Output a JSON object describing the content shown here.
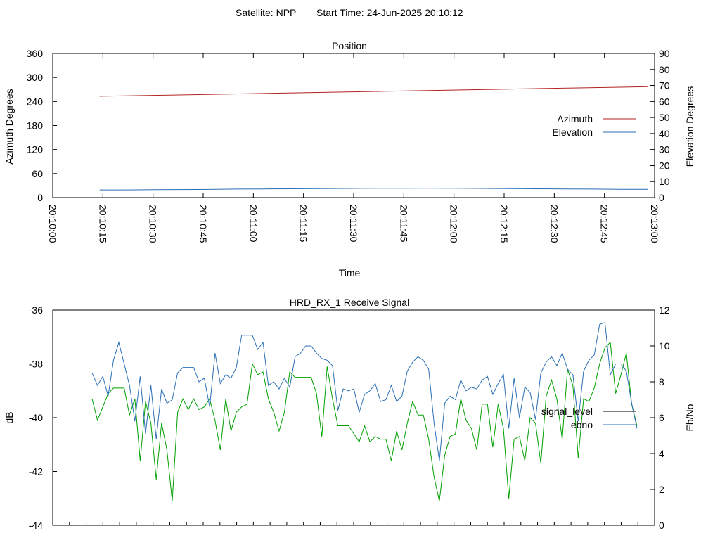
{
  "header": {
    "satellite": "Satellite: NPP",
    "start_time": "Start Time: 24-Jun-2025 20:10:12"
  },
  "chart_data": [
    {
      "type": "line",
      "title": "Position",
      "xlabel": "Time",
      "ylabel": "Azimuth Degrees",
      "y2label": "Elevation Degrees",
      "ylim": [
        0,
        360
      ],
      "y2lim": [
        0,
        90
      ],
      "yticks": [
        0,
        60,
        120,
        180,
        240,
        300,
        360
      ],
      "y2ticks": [
        0,
        10,
        20,
        30,
        40,
        50,
        60,
        70,
        80,
        90
      ],
      "xlim_seconds_after_start": [
        -12,
        168
      ],
      "xtick_labels": [
        "20:10:00",
        "20:10:15",
        "20:10:30",
        "20:10:45",
        "20:11:00",
        "20:11:15",
        "20:11:30",
        "20:11:45",
        "20:12:00",
        "20:12:15",
        "20:12:30",
        "20:12:45",
        "20:13:00"
      ],
      "legend_position": "right",
      "colors": {
        "azimuth": "#b22222",
        "elevation": "#2a6fb5"
      },
      "series": [
        {
          "name": "Azimuth",
          "axis": "left",
          "x_range": [
            "20:10:14",
            "20:12:58"
          ],
          "start": 253,
          "end": 277
        },
        {
          "name": "Elevation",
          "axis": "right",
          "x_range": [
            "20:10:14",
            "20:12:58"
          ],
          "values": [
            4.8,
            4.8,
            4.9,
            5.0,
            5.1,
            5.3,
            5.4,
            5.5,
            5.6,
            5.7,
            5.8,
            5.8,
            5.9,
            5.8,
            5.7,
            5.6,
            5.5,
            5.4,
            5.3,
            5.2,
            5.2
          ]
        }
      ]
    },
    {
      "type": "line",
      "title": "HRD_RX_1 Receive Signal",
      "ylabel": "dB",
      "y2label": "Eb/No",
      "ylim": [
        -44,
        -36
      ],
      "y2lim": [
        0,
        12
      ],
      "yticks": [
        -44,
        -42,
        -40,
        -38,
        -36
      ],
      "y2ticks": [
        0,
        2,
        4,
        6,
        8,
        10,
        12
      ],
      "legend_position": "right",
      "colors": {
        "signal_level": "#00a000",
        "ebno": "#2a6fb5",
        "legend_signal": "#000000"
      },
      "series": [
        {
          "name": "signal_level",
          "axis": "left",
          "values": [
            -39.3,
            -40.1,
            -39.6,
            -39.1,
            -38.9,
            -38.9,
            -38.9,
            -39.9,
            -39.3,
            -41.6,
            -39.4,
            -40.2,
            -42.3,
            -40.2,
            -41.2,
            -43.1,
            -39.8,
            -39.3,
            -39.7,
            -39.3,
            -39.7,
            -39.6,
            -39.3,
            -40.1,
            -41.2,
            -39.3,
            -40.5,
            -39.8,
            -39.6,
            -39.5,
            -38.0,
            -38.4,
            -38.3,
            -39.3,
            -39.8,
            -40.5,
            -39.8,
            -38.3,
            -38.5,
            -38.5,
            -38.5,
            -38.5,
            -39.1,
            -40.7,
            -38.1,
            -39.3,
            -40.3,
            -40.3,
            -40.3,
            -40.6,
            -40.9,
            -40.3,
            -40.9,
            -40.7,
            -40.8,
            -40.8,
            -41.6,
            -40.5,
            -41.2,
            -40.2,
            -39.4,
            -39.9,
            -39.9,
            -40.8,
            -42.2,
            -43.1,
            -41.4,
            -40.7,
            -40.6,
            -39.3,
            -40.1,
            -40.4,
            -41.2,
            -39.5,
            -39.5,
            -41.1,
            -39.5,
            -40.4,
            -43.0,
            -40.8,
            -40.7,
            -41.6,
            -40.0,
            -40.2,
            -41.7,
            -39.2,
            -38.6,
            -39.3,
            -40.8,
            -38.2,
            -38.8,
            -41.5,
            -39.3,
            -39.4,
            -38.9,
            -38.0,
            -37.4,
            -37.2,
            -39.1,
            -38.4,
            -37.6,
            -39.5,
            -40.3
          ]
        },
        {
          "name": "ebno",
          "axis": "right",
          "values": [
            8.5,
            7.8,
            8.3,
            7.2,
            9.2,
            10.2,
            9.0,
            7.8,
            5.8,
            8.3,
            5.1,
            7.8,
            4.8,
            7.6,
            6.8,
            7.0,
            8.5,
            8.8,
            8.8,
            8.8,
            8.0,
            8.2,
            6.6,
            9.6,
            7.9,
            8.4,
            8.2,
            8.8,
            10.6,
            10.6,
            10.6,
            9.8,
            10.2,
            7.8,
            8.0,
            7.6,
            8.2,
            7.7,
            9.4,
            9.6,
            10.0,
            10.0,
            9.6,
            9.3,
            9.2,
            8.9,
            6.4,
            7.6,
            7.5,
            7.6,
            6.3,
            7.3,
            7.5,
            7.9,
            6.9,
            7.0,
            7.8,
            6.9,
            7.2,
            8.6,
            9.1,
            9.4,
            9.2,
            8.7,
            5.7,
            3.6,
            6.8,
            7.2,
            7.0,
            8.1,
            7.5,
            7.7,
            7.6,
            8.1,
            8.3,
            7.3,
            7.9,
            8.4,
            5.4,
            8.2,
            6.0,
            7.7,
            7.4,
            5.9,
            8.5,
            9.1,
            9.4,
            8.9,
            9.6,
            8.7,
            8.4,
            5.8,
            8.6,
            9.2,
            9.5,
            11.2,
            11.3,
            8.4,
            9.0,
            9.0,
            8.6,
            6.8,
            5.4
          ]
        }
      ]
    }
  ]
}
